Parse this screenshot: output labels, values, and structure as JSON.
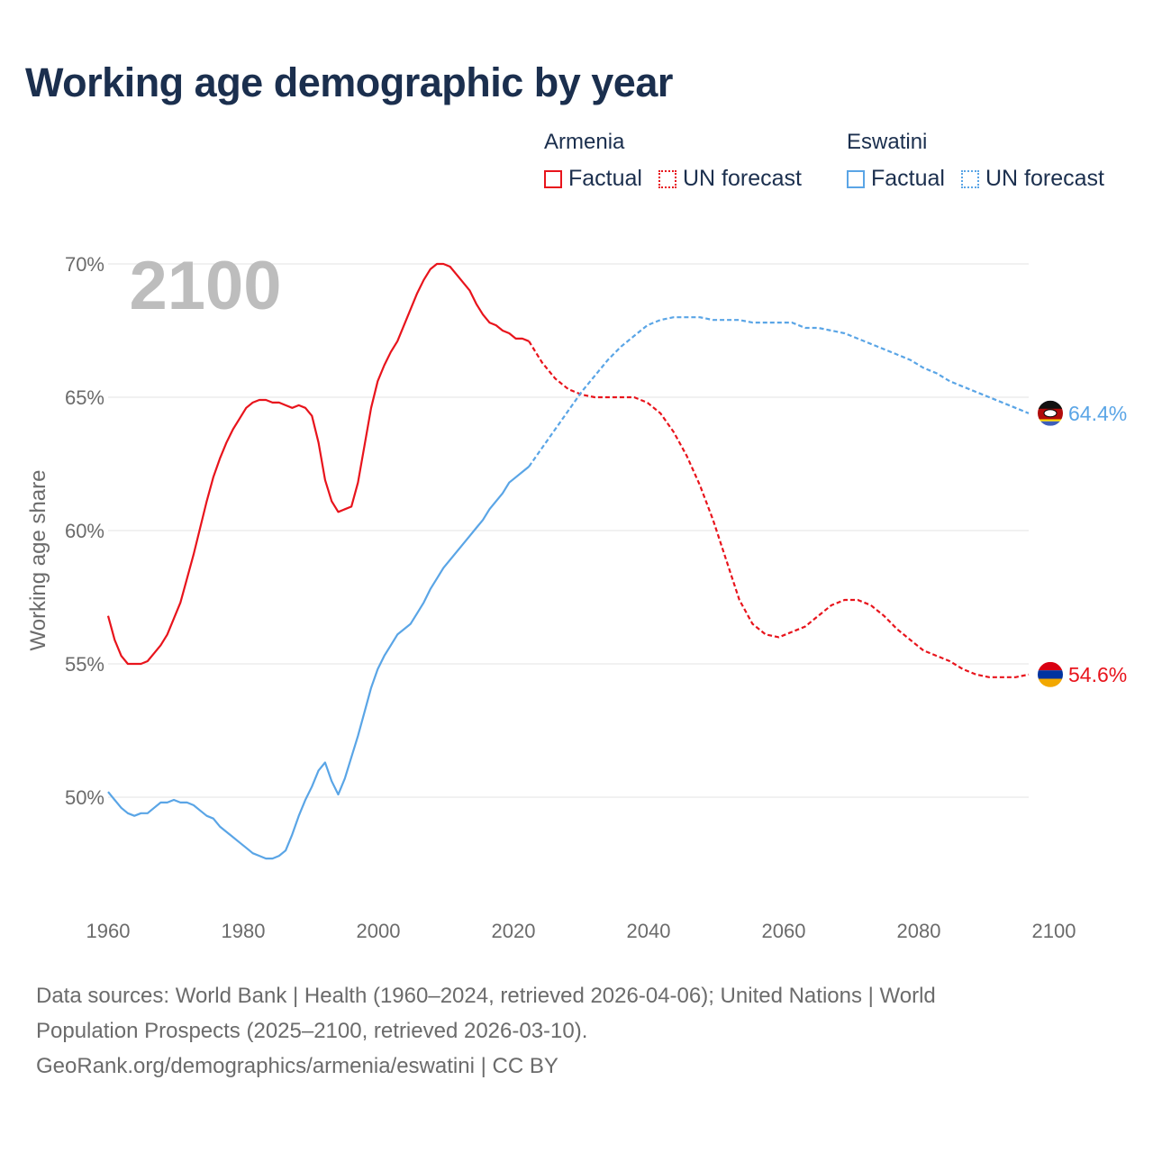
{
  "chart_data": {
    "type": "line",
    "title": "Working age demographic by year",
    "ylabel": "Working age share",
    "xlabel": "",
    "year_label": "2100",
    "x_ticks": [
      1960,
      1980,
      2000,
      2020,
      2040,
      2060,
      2080,
      2100
    ],
    "y_ticks": [
      50,
      55,
      60,
      65,
      70
    ],
    "y_tick_labels": [
      "50%",
      "55%",
      "60%",
      "65%",
      "70%"
    ],
    "xlim": [
      1960,
      2100
    ],
    "ylim": [
      45.8,
      71.2
    ],
    "grid": true,
    "legend": {
      "position": "top-right",
      "groups": [
        {
          "name": "Armenia",
          "factual": "Factual",
          "forecast": "UN forecast"
        },
        {
          "name": "Eswatini",
          "factual": "Factual",
          "forecast": "UN forecast"
        }
      ]
    },
    "series": [
      {
        "name": "Armenia",
        "color": "#e8141c",
        "end_label": "54.6%",
        "factual": {
          "x": [
            1960,
            1961,
            1962,
            1963,
            1964,
            1965,
            1966,
            1967,
            1968,
            1969,
            1970,
            1971,
            1972,
            1973,
            1974,
            1975,
            1976,
            1977,
            1978,
            1979,
            1980,
            1981,
            1982,
            1983,
            1984,
            1985,
            1986,
            1987,
            1988,
            1989,
            1990,
            1991,
            1992,
            1993,
            1994,
            1995,
            1996,
            1997,
            1998,
            1999,
            2000,
            2001,
            2002,
            2003,
            2004,
            2005,
            2006,
            2007,
            2008,
            2009,
            2010,
            2011,
            2012,
            2013,
            2014,
            2015,
            2016,
            2017,
            2018,
            2019,
            2020,
            2021,
            2022,
            2023,
            2024
          ],
          "y": [
            56.8,
            55.9,
            55.3,
            55.0,
            55.0,
            55.0,
            55.1,
            55.4,
            55.7,
            56.1,
            56.7,
            57.3,
            58.2,
            59.1,
            60.1,
            61.1,
            62.0,
            62.7,
            63.3,
            63.8,
            64.2,
            64.6,
            64.8,
            64.9,
            64.9,
            64.8,
            64.8,
            64.7,
            64.6,
            64.7,
            64.6,
            64.3,
            63.3,
            61.9,
            61.1,
            60.7,
            60.8,
            60.9,
            61.8,
            63.2,
            64.6,
            65.6,
            66.2,
            66.7,
            67.1,
            67.7,
            68.3,
            68.9,
            69.4,
            69.8,
            70.0,
            70.0,
            69.9,
            69.6,
            69.3,
            69.0,
            68.5,
            68.1,
            67.8,
            67.7,
            67.5,
            67.4,
            67.2,
            67.2,
            67.1
          ]
        },
        "forecast": {
          "x": [
            2024,
            2026,
            2028,
            2030,
            2032,
            2034,
            2036,
            2038,
            2040,
            2042,
            2044,
            2046,
            2048,
            2050,
            2052,
            2054,
            2056,
            2058,
            2060,
            2062,
            2064,
            2066,
            2068,
            2070,
            2072,
            2074,
            2076,
            2078,
            2080,
            2082,
            2084,
            2086,
            2088,
            2090,
            2092,
            2094,
            2096,
            2098,
            2100
          ],
          "y": [
            67.1,
            66.3,
            65.7,
            65.3,
            65.1,
            65.0,
            65.0,
            65.0,
            65.0,
            64.8,
            64.4,
            63.7,
            62.8,
            61.7,
            60.4,
            58.9,
            57.4,
            56.5,
            56.1,
            56.0,
            56.2,
            56.4,
            56.8,
            57.2,
            57.4,
            57.4,
            57.2,
            56.8,
            56.3,
            55.9,
            55.5,
            55.3,
            55.1,
            54.8,
            54.6,
            54.5,
            54.5,
            54.5,
            54.6
          ]
        }
      },
      {
        "name": "Eswatini",
        "color": "#5aa5e6",
        "end_label": "64.4%",
        "factual": {
          "x": [
            1960,
            1961,
            1962,
            1963,
            1964,
            1965,
            1966,
            1967,
            1968,
            1969,
            1970,
            1971,
            1972,
            1973,
            1974,
            1975,
            1976,
            1977,
            1978,
            1979,
            1980,
            1981,
            1982,
            1983,
            1984,
            1985,
            1986,
            1987,
            1988,
            1989,
            1990,
            1991,
            1992,
            1993,
            1994,
            1995,
            1996,
            1997,
            1998,
            1999,
            2000,
            2001,
            2002,
            2003,
            2004,
            2005,
            2006,
            2007,
            2008,
            2009,
            2010,
            2011,
            2012,
            2013,
            2014,
            2015,
            2016,
            2017,
            2018,
            2019,
            2020,
            2021,
            2022,
            2023,
            2024
          ],
          "y": [
            50.2,
            49.9,
            49.6,
            49.4,
            49.3,
            49.4,
            49.4,
            49.6,
            49.8,
            49.8,
            49.9,
            49.8,
            49.8,
            49.7,
            49.5,
            49.3,
            49.2,
            48.9,
            48.7,
            48.5,
            48.3,
            48.1,
            47.9,
            47.8,
            47.7,
            47.7,
            47.8,
            48.0,
            48.6,
            49.3,
            49.9,
            50.4,
            51.0,
            51.3,
            50.6,
            50.1,
            50.7,
            51.5,
            52.3,
            53.2,
            54.1,
            54.8,
            55.3,
            55.7,
            56.1,
            56.3,
            56.5,
            56.9,
            57.3,
            57.8,
            58.2,
            58.6,
            58.9,
            59.2,
            59.5,
            59.8,
            60.1,
            60.4,
            60.8,
            61.1,
            61.4,
            61.8,
            62.0,
            62.2,
            62.4
          ]
        },
        "forecast": {
          "x": [
            2024,
            2026,
            2028,
            2030,
            2032,
            2034,
            2036,
            2038,
            2040,
            2042,
            2044,
            2046,
            2048,
            2050,
            2052,
            2054,
            2056,
            2058,
            2060,
            2062,
            2064,
            2066,
            2068,
            2070,
            2072,
            2074,
            2076,
            2078,
            2080,
            2082,
            2084,
            2086,
            2088,
            2090,
            2092,
            2094,
            2096,
            2098,
            2100
          ],
          "y": [
            62.4,
            63.1,
            63.8,
            64.5,
            65.2,
            65.8,
            66.4,
            66.9,
            67.3,
            67.7,
            67.9,
            68.0,
            68.0,
            68.0,
            67.9,
            67.9,
            67.9,
            67.8,
            67.8,
            67.8,
            67.8,
            67.6,
            67.6,
            67.5,
            67.4,
            67.2,
            67.0,
            66.8,
            66.6,
            66.4,
            66.1,
            65.9,
            65.6,
            65.4,
            65.2,
            65.0,
            64.8,
            64.6,
            64.4
          ]
        }
      }
    ]
  },
  "footer": {
    "line1": "Data sources: World Bank | Health (1960–2024, retrieved 2026-04-06); United Nations | World",
    "line2": "Population Prospects (2025–2100, retrieved 2026-03-10).",
    "line3": "GeoRank.org/demographics/armenia/eswatini | CC BY"
  },
  "flags": [
    {
      "name": "eswatini-flag-icon",
      "colors": [
        "#3e5eb9",
        "#ffd900",
        "#b10c0c"
      ]
    },
    {
      "name": "armenia-flag-icon",
      "colors": [
        "#d90012",
        "#0033a0",
        "#f2a800"
      ]
    }
  ]
}
